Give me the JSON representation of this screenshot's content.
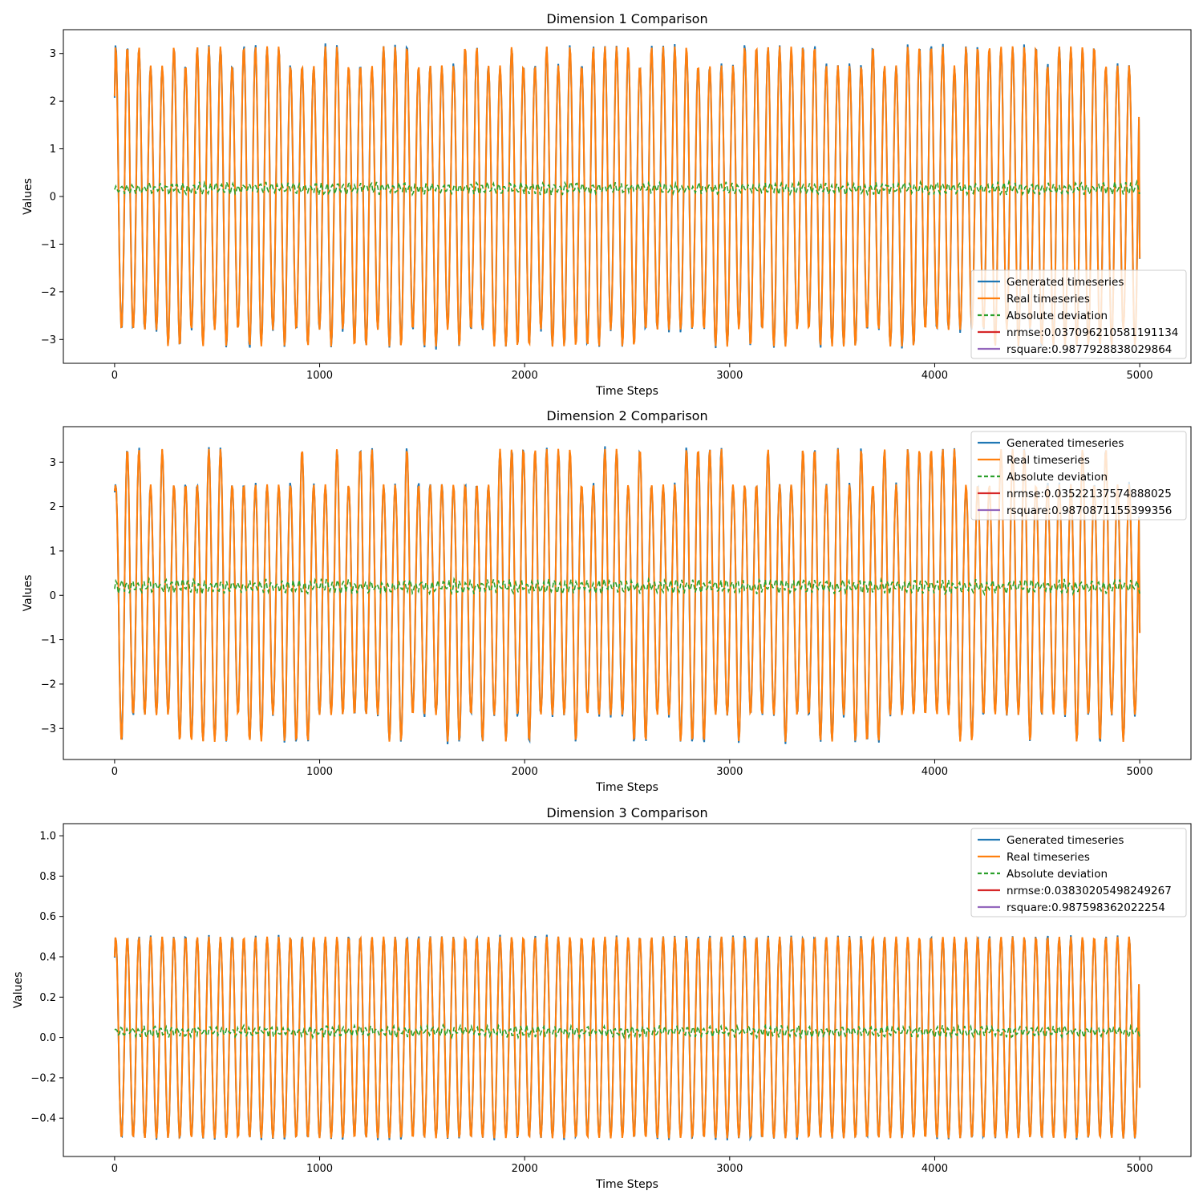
{
  "figure": {
    "background": "#ffffff"
  },
  "colors": {
    "generated": "#1f77b4",
    "real": "#ff7f0e",
    "deviation": "#2ca02c",
    "nrmse": "#d62728",
    "rsquare": "#9467bd"
  },
  "chart_data": [
    {
      "type": "line",
      "title": "Dimension 1 Comparison",
      "xlabel": "Time Steps",
      "ylabel": "Values",
      "xlim": [
        -250,
        5250
      ],
      "ylim": [
        -3.5,
        3.5
      ],
      "xticks": [
        0,
        1000,
        2000,
        3000,
        4000,
        5000
      ],
      "yticks": [
        -3,
        -2,
        -1,
        0,
        1,
        2,
        3
      ],
      "n_points": 5001,
      "grid": false,
      "legend_position": "lower right",
      "signal": {
        "amp_high": 3.15,
        "amp_low": -3.15,
        "amp_mid_high": 2.75,
        "amp_mid_low": -2.8,
        "start_value": 2.1,
        "end_value": -1.3,
        "cycles": 88
      },
      "deviation": {
        "mean": 0.17,
        "spread": 0.18,
        "max": 0.48
      },
      "series": [
        {
          "name": "Generated timeseries",
          "style": "solid"
        },
        {
          "name": "Real timeseries",
          "style": "solid"
        },
        {
          "name": "Absolute deviation",
          "style": "dashed"
        },
        {
          "name": "nrmse:0.037096210581191134",
          "style": "solid"
        },
        {
          "name": "rsquare:0.9877928838029864",
          "style": "solid"
        }
      ]
    },
    {
      "type": "line",
      "title": "Dimension 2 Comparison",
      "xlabel": "Time Steps",
      "ylabel": "Values",
      "xlim": [
        -250,
        5250
      ],
      "ylim": [
        -3.7,
        3.8
      ],
      "xticks": [
        0,
        1000,
        2000,
        3000,
        4000,
        5000
      ],
      "yticks": [
        -3,
        -2,
        -1,
        0,
        1,
        2,
        3
      ],
      "n_points": 5001,
      "grid": false,
      "legend_position": "upper right",
      "signal": {
        "amp_high": 3.3,
        "amp_low": -3.3,
        "amp_mid_high": 2.5,
        "amp_mid_low": -2.7,
        "start_value": 2.35,
        "end_value": -0.85,
        "cycles": 88
      },
      "deviation": {
        "mean": 0.2,
        "spread": 0.22,
        "max": 0.5
      },
      "series": [
        {
          "name": "Generated timeseries",
          "style": "solid"
        },
        {
          "name": "Real timeseries",
          "style": "solid"
        },
        {
          "name": "Absolute deviation",
          "style": "dashed"
        },
        {
          "name": "nrmse:0.03522137574888025",
          "style": "solid"
        },
        {
          "name": "rsquare:0.9870871155399356",
          "style": "solid"
        }
      ]
    },
    {
      "type": "line",
      "title": "Dimension 3 Comparison",
      "xlabel": "Time Steps",
      "ylabel": "Values",
      "xlim": [
        -250,
        5250
      ],
      "ylim": [
        -0.59,
        1.06
      ],
      "xticks": [
        0,
        1000,
        2000,
        3000,
        4000,
        5000
      ],
      "yticks": [
        -0.4,
        -0.2,
        0.0,
        0.2,
        0.4,
        0.6,
        0.8,
        1.0
      ],
      "n_points": 5001,
      "grid": false,
      "legend_position": "upper right",
      "signal": {
        "amp_high": 0.5,
        "amp_low": -0.5,
        "amp_mid_high": 0.5,
        "amp_mid_low": -0.5,
        "start_value": 0.4,
        "end_value": -0.25,
        "cycles": 88
      },
      "deviation": {
        "mean": 0.03,
        "spread": 0.04,
        "max": 0.13
      },
      "series": [
        {
          "name": "Generated timeseries",
          "style": "solid"
        },
        {
          "name": "Real timeseries",
          "style": "solid"
        },
        {
          "name": "Absolute deviation",
          "style": "dashed"
        },
        {
          "name": "nrmse:0.03830205498249267",
          "style": "solid"
        },
        {
          "name": "rsquare:0.987598362022254",
          "style": "solid"
        }
      ]
    }
  ]
}
